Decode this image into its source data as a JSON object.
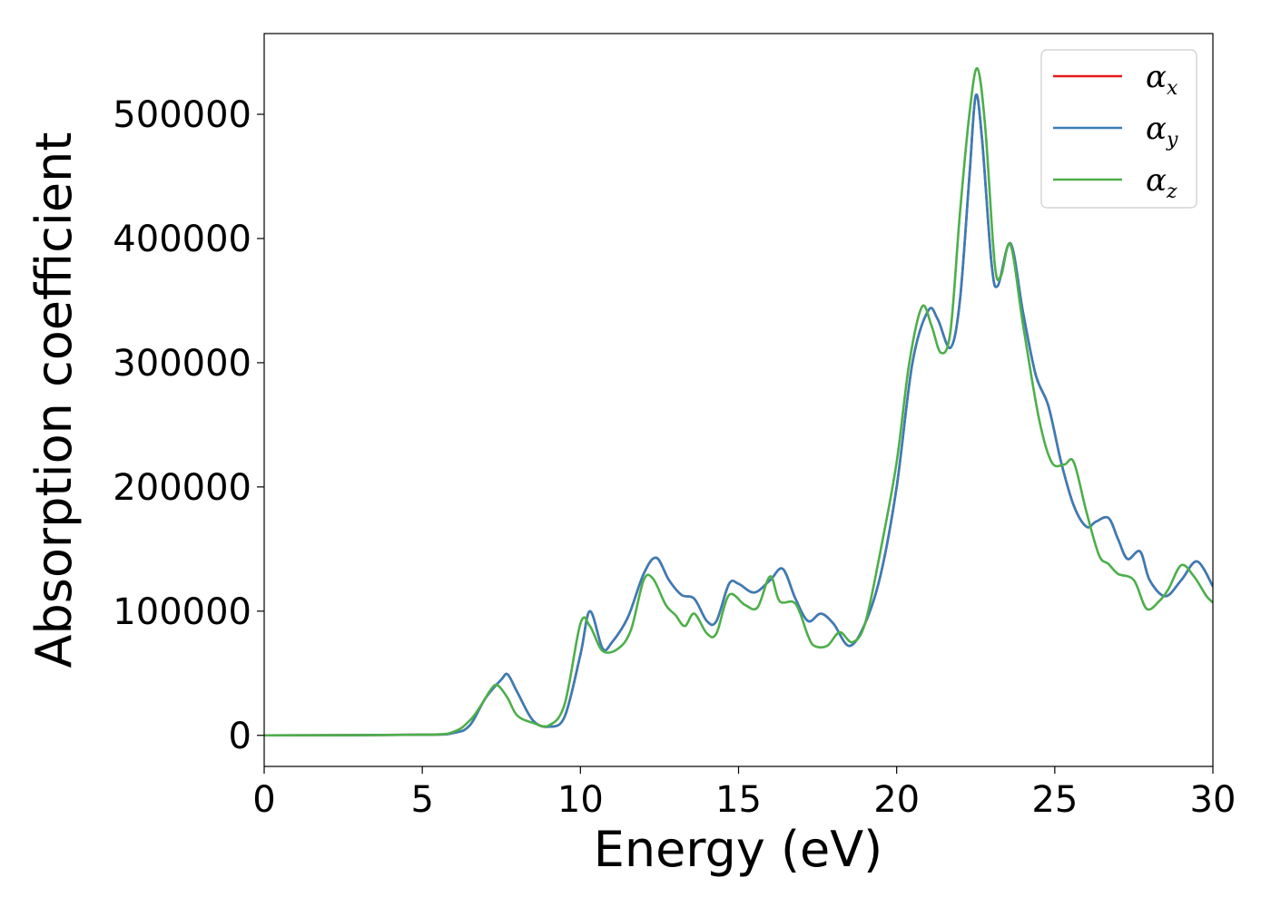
{
  "chart_data": {
    "type": "line",
    "xlabel": "Energy (eV)",
    "ylabel": "Absorption coefficient",
    "xlim": [
      0,
      30
    ],
    "ylim": [
      -25000,
      565000
    ],
    "xticks": [
      "0",
      "5",
      "10",
      "15",
      "20",
      "25",
      "30"
    ],
    "yticks": [
      "0",
      "100000",
      "200000",
      "300000",
      "400000",
      "500000"
    ],
    "grid": false,
    "legend_position": "top-right",
    "series": [
      {
        "name": "x",
        "legend_symbol": "α",
        "color": "#e41a1c",
        "points": [
          [
            0,
            0
          ],
          [
            5,
            500
          ],
          [
            6,
            2000
          ],
          [
            6.5,
            8000
          ],
          [
            7,
            30000
          ],
          [
            7.5,
            45000
          ],
          [
            7.7,
            49000
          ],
          [
            8,
            35000
          ],
          [
            8.5,
            12000
          ],
          [
            9,
            7000
          ],
          [
            9.5,
            15000
          ],
          [
            10,
            65000
          ],
          [
            10.3,
            100000
          ],
          [
            10.7,
            70000
          ],
          [
            11,
            75000
          ],
          [
            11.5,
            95000
          ],
          [
            12,
            130000
          ],
          [
            12.4,
            143000
          ],
          [
            12.8,
            125000
          ],
          [
            13.2,
            113000
          ],
          [
            13.6,
            110000
          ],
          [
            14,
            92000
          ],
          [
            14.3,
            92000
          ],
          [
            14.7,
            122000
          ],
          [
            15,
            122000
          ],
          [
            15.5,
            115000
          ],
          [
            16,
            125000
          ],
          [
            16.4,
            134000
          ],
          [
            16.8,
            110000
          ],
          [
            17.2,
            92000
          ],
          [
            17.6,
            98000
          ],
          [
            18,
            90000
          ],
          [
            18.5,
            72000
          ],
          [
            19,
            90000
          ],
          [
            19.5,
            130000
          ],
          [
            20,
            200000
          ],
          [
            20.5,
            300000
          ],
          [
            21,
            342000
          ],
          [
            21.3,
            335000
          ],
          [
            21.7,
            312000
          ],
          [
            22,
            350000
          ],
          [
            22.3,
            450000
          ],
          [
            22.5,
            515000
          ],
          [
            22.7,
            480000
          ],
          [
            23,
            380000
          ],
          [
            23.2,
            362000
          ],
          [
            23.6,
            396000
          ],
          [
            24,
            340000
          ],
          [
            24.4,
            290000
          ],
          [
            24.8,
            265000
          ],
          [
            25.2,
            220000
          ],
          [
            25.6,
            185000
          ],
          [
            26,
            168000
          ],
          [
            26.3,
            172000
          ],
          [
            26.7,
            175000
          ],
          [
            27,
            158000
          ],
          [
            27.3,
            142000
          ],
          [
            27.7,
            148000
          ],
          [
            28,
            125000
          ],
          [
            28.5,
            112000
          ],
          [
            29,
            125000
          ],
          [
            29.5,
            140000
          ],
          [
            30,
            120000
          ]
        ]
      },
      {
        "name": "y",
        "legend_symbol": "α",
        "color": "#377eb8",
        "points": [
          [
            0,
            0
          ],
          [
            5,
            500
          ],
          [
            6,
            2000
          ],
          [
            6.5,
            8000
          ],
          [
            7,
            30000
          ],
          [
            7.5,
            45000
          ],
          [
            7.7,
            49000
          ],
          [
            8,
            35000
          ],
          [
            8.5,
            12000
          ],
          [
            9,
            7000
          ],
          [
            9.5,
            15000
          ],
          [
            10,
            65000
          ],
          [
            10.3,
            100000
          ],
          [
            10.7,
            70000
          ],
          [
            11,
            75000
          ],
          [
            11.5,
            95000
          ],
          [
            12,
            130000
          ],
          [
            12.4,
            143000
          ],
          [
            12.8,
            125000
          ],
          [
            13.2,
            113000
          ],
          [
            13.6,
            110000
          ],
          [
            14,
            92000
          ],
          [
            14.3,
            92000
          ],
          [
            14.7,
            122000
          ],
          [
            15,
            122000
          ],
          [
            15.5,
            115000
          ],
          [
            16,
            125000
          ],
          [
            16.4,
            134000
          ],
          [
            16.8,
            110000
          ],
          [
            17.2,
            92000
          ],
          [
            17.6,
            98000
          ],
          [
            18,
            90000
          ],
          [
            18.5,
            72000
          ],
          [
            19,
            90000
          ],
          [
            19.5,
            130000
          ],
          [
            20,
            200000
          ],
          [
            20.5,
            300000
          ],
          [
            21,
            342000
          ],
          [
            21.3,
            335000
          ],
          [
            21.7,
            312000
          ],
          [
            22,
            350000
          ],
          [
            22.3,
            450000
          ],
          [
            22.5,
            515000
          ],
          [
            22.7,
            480000
          ],
          [
            23,
            380000
          ],
          [
            23.2,
            362000
          ],
          [
            23.6,
            396000
          ],
          [
            24,
            340000
          ],
          [
            24.4,
            290000
          ],
          [
            24.8,
            265000
          ],
          [
            25.2,
            220000
          ],
          [
            25.6,
            185000
          ],
          [
            26,
            168000
          ],
          [
            26.3,
            172000
          ],
          [
            26.7,
            175000
          ],
          [
            27,
            158000
          ],
          [
            27.3,
            142000
          ],
          [
            27.7,
            148000
          ],
          [
            28,
            125000
          ],
          [
            28.5,
            112000
          ],
          [
            29,
            125000
          ],
          [
            29.5,
            140000
          ],
          [
            30,
            120000
          ]
        ]
      },
      {
        "name": "z",
        "legend_symbol": "α",
        "color": "#4daf4a",
        "points": [
          [
            0,
            0
          ],
          [
            5,
            500
          ],
          [
            6,
            3000
          ],
          [
            6.5,
            12000
          ],
          [
            6.8,
            22000
          ],
          [
            7.2,
            38000
          ],
          [
            7.4,
            40000
          ],
          [
            7.7,
            30000
          ],
          [
            8,
            16000
          ],
          [
            8.5,
            10000
          ],
          [
            9,
            8000
          ],
          [
            9.5,
            25000
          ],
          [
            10,
            90000
          ],
          [
            10.3,
            88000
          ],
          [
            10.7,
            68000
          ],
          [
            11.2,
            70000
          ],
          [
            11.6,
            85000
          ],
          [
            12,
            125000
          ],
          [
            12.3,
            126000
          ],
          [
            12.7,
            105000
          ],
          [
            13,
            97000
          ],
          [
            13.3,
            88000
          ],
          [
            13.6,
            98000
          ],
          [
            14,
            82000
          ],
          [
            14.3,
            82000
          ],
          [
            14.7,
            113000
          ],
          [
            15.2,
            105000
          ],
          [
            15.6,
            103000
          ],
          [
            16,
            128000
          ],
          [
            16.3,
            108000
          ],
          [
            16.8,
            106000
          ],
          [
            17.2,
            80000
          ],
          [
            17.4,
            72000
          ],
          [
            17.8,
            72000
          ],
          [
            18.2,
            83000
          ],
          [
            18.6,
            75000
          ],
          [
            19,
            90000
          ],
          [
            19.5,
            150000
          ],
          [
            20,
            220000
          ],
          [
            20.4,
            300000
          ],
          [
            20.8,
            345000
          ],
          [
            21.1,
            330000
          ],
          [
            21.4,
            308000
          ],
          [
            21.7,
            325000
          ],
          [
            22,
            420000
          ],
          [
            22.3,
            500000
          ],
          [
            22.55,
            537000
          ],
          [
            22.8,
            490000
          ],
          [
            23.1,
            380000
          ],
          [
            23.3,
            370000
          ],
          [
            23.6,
            395000
          ],
          [
            24,
            330000
          ],
          [
            24.5,
            255000
          ],
          [
            24.9,
            220000
          ],
          [
            25.3,
            218000
          ],
          [
            25.6,
            220000
          ],
          [
            26,
            180000
          ],
          [
            26.4,
            145000
          ],
          [
            26.7,
            138000
          ],
          [
            27,
            130000
          ],
          [
            27.5,
            125000
          ],
          [
            27.9,
            102000
          ],
          [
            28.3,
            108000
          ],
          [
            28.6,
            118000
          ],
          [
            29,
            137000
          ],
          [
            29.4,
            128000
          ],
          [
            29.8,
            112000
          ],
          [
            30,
            107000
          ]
        ]
      }
    ]
  }
}
